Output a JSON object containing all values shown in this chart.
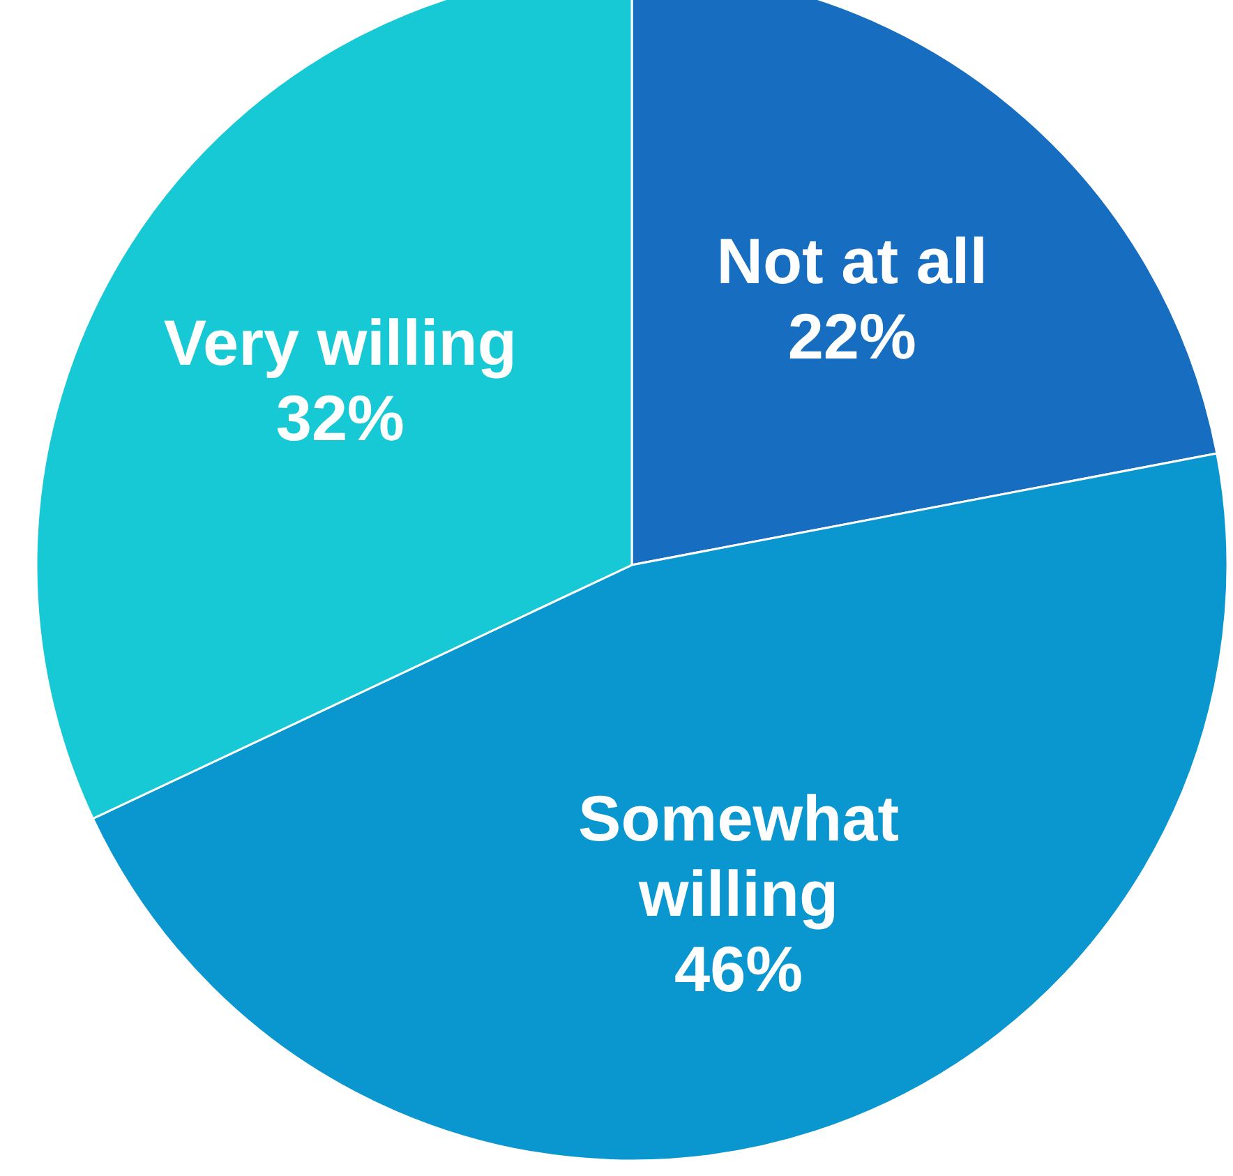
{
  "chart_data": {
    "type": "pie",
    "categories": [
      "Not at all",
      "Somewhat willing",
      "Very willing"
    ],
    "values": [
      22,
      46,
      32
    ],
    "colors": [
      "#176ec0",
      "#0a96cf",
      "#17c9d4"
    ],
    "value_labels": [
      "22%",
      "46%",
      "32%"
    ]
  }
}
